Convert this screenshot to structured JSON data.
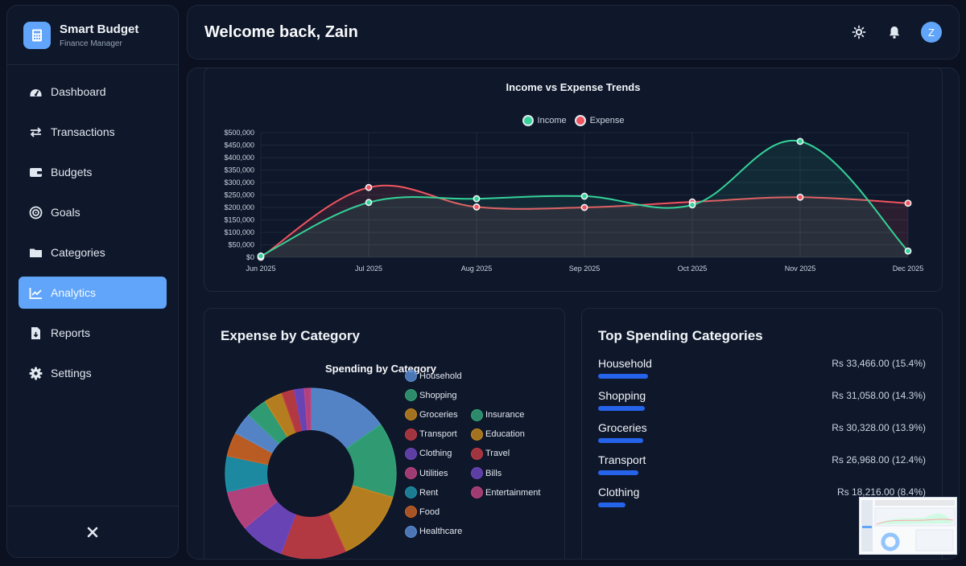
{
  "brand": {
    "title": "Smart Budget",
    "subtitle": "Finance Manager"
  },
  "nav": {
    "items": [
      {
        "label": "Dashboard",
        "icon": "gauge-icon"
      },
      {
        "label": "Transactions",
        "icon": "arrows-exchange-icon"
      },
      {
        "label": "Budgets",
        "icon": "wallet-icon"
      },
      {
        "label": "Goals",
        "icon": "target-icon"
      },
      {
        "label": "Categories",
        "icon": "folder-icon"
      },
      {
        "label": "Analytics",
        "icon": "line-chart-icon",
        "active": true
      },
      {
        "label": "Reports",
        "icon": "file-export-icon"
      },
      {
        "label": "Settings",
        "icon": "gear-icon"
      }
    ]
  },
  "header": {
    "welcome": "Welcome back, Zain",
    "avatar_letter": "Z"
  },
  "colors": {
    "accent": "#60a5fa",
    "income": "#34d399",
    "expense": "#f0555f",
    "bar": "#2563eb"
  },
  "expense_card": {
    "title": "Expense by Category",
    "chart_title": "Spending by Category"
  },
  "top_card": {
    "title": "Top Spending Categories",
    "rows": [
      {
        "name": "Household",
        "value": "Rs 33,466.00 (15.4%)",
        "share": 15.4
      },
      {
        "name": "Shopping",
        "value": "Rs 31,058.00 (14.3%)",
        "share": 14.3
      },
      {
        "name": "Groceries",
        "value": "Rs 30,328.00 (13.9%)",
        "share": 13.9
      },
      {
        "name": "Transport",
        "value": "Rs 26,968.00 (12.4%)",
        "share": 12.4
      },
      {
        "name": "Clothing",
        "value": "Rs 18,216.00 (8.4%)",
        "share": 8.4
      }
    ]
  },
  "chart_data": [
    {
      "type": "line",
      "title": "Income vs Expense Trends",
      "categories": [
        "Jun 2025",
        "Jul 2025",
        "Aug 2025",
        "Sep 2025",
        "Oct 2025",
        "Nov 2025",
        "Dec 2025"
      ],
      "series": [
        {
          "name": "Income",
          "values": [
            5000,
            220000,
            235000,
            245000,
            210000,
            465000,
            25000
          ]
        },
        {
          "name": "Expense",
          "values": [
            0,
            280000,
            202000,
            200000,
            222000,
            241000,
            217000
          ]
        }
      ],
      "ylim": [
        0,
        500000
      ],
      "yticks": [
        "$500,000",
        "$450,000",
        "$400,000",
        "$350,000",
        "$300,000",
        "$250,000",
        "$200,000",
        "$150,000",
        "$100,000",
        "$50,000",
        "$0"
      ],
      "legend": "top-center",
      "grid": true
    },
    {
      "type": "pie",
      "title": "Spending by Category",
      "labels": [
        "Household",
        "Shopping",
        "Groceries",
        "Transport",
        "Clothing",
        "Utilities",
        "Rent",
        "Food",
        "Healthcare",
        "Insurance",
        "Education",
        "Travel",
        "Bills",
        "Entertainment"
      ],
      "values": [
        15.4,
        14.3,
        13.9,
        12.4,
        8.4,
        7.6,
        6.8,
        4.6,
        4.2,
        4.0,
        3.5,
        2.4,
        1.9,
        1.2
      ],
      "colors": [
        "#5b8fd6",
        "#34a87a",
        "#c7891f",
        "#c43c45",
        "#7148c2",
        "#c24684",
        "#1e96ad",
        "#cc6424",
        "#5b8fd6",
        "#34a87a",
        "#c7891f",
        "#c43c45",
        "#7148c2",
        "#c24684"
      ],
      "legend": "right"
    }
  ]
}
